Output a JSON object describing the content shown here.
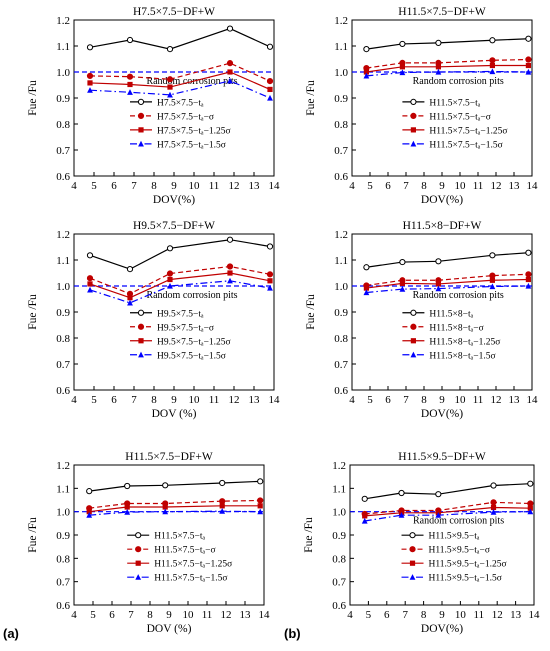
{
  "panel_labels": [
    "(a)",
    "(b)"
  ],
  "series_style": {
    "colors": [
      "#000000",
      "#c00000",
      "#c00000",
      "#0000ff"
    ],
    "line_styles": [
      "solid",
      "dashed",
      "solid",
      "dashdot"
    ],
    "markers": [
      "circle-open",
      "circle-filled",
      "square-filled",
      "triangle-filled"
    ]
  },
  "annotation_color": "#0000ff",
  "chart_data": [
    {
      "type": "line",
      "title": "H7.5×7.5−DF+W",
      "xlabel": "DOV(%)",
      "ylabel": "Fue /Fu",
      "xlim": [
        4,
        14
      ],
      "ylim": [
        0.6,
        1.2
      ],
      "xticks": [
        "4",
        "5",
        "6",
        "7",
        "8",
        "9",
        "10",
        "11",
        "12",
        "13",
        "14"
      ],
      "yticks": [
        "0.6",
        "0.7",
        "0.8",
        "0.9",
        "1.0",
        "1.1",
        "1.2"
      ],
      "x": [
        4.8,
        6.8,
        8.8,
        11.8,
        13.8
      ],
      "reference_line": 1.0,
      "annotation": "Random corrosion pits",
      "series": [
        {
          "name": "H7.5×7.5−tₐ",
          "values": [
            1.095,
            1.123,
            1.088,
            1.167,
            1.097
          ]
        },
        {
          "name": "H7.5×7.5−tₐ−σ",
          "values": [
            0.985,
            0.982,
            0.972,
            1.034,
            0.965
          ]
        },
        {
          "name": "H7.5×7.5−tₐ−1.25σ",
          "values": [
            0.958,
            0.952,
            0.942,
            1.0,
            0.933
          ]
        },
        {
          "name": "H7.5×7.5−tₐ−1.5σ",
          "values": [
            0.93,
            0.922,
            0.912,
            0.966,
            0.9
          ]
        }
      ]
    },
    {
      "type": "line",
      "title": "H11.5×7.5−DF+W",
      "xlabel": "DOV(%)",
      "ylabel": "Fue /Fu",
      "xlim": [
        4,
        14
      ],
      "ylim": [
        0.6,
        1.2
      ],
      "xticks": [
        "4",
        "5",
        "6",
        "7",
        "8",
        "9",
        "10",
        "11",
        "12",
        "13",
        "14"
      ],
      "yticks": [
        "0.6",
        "0.7",
        "0.8",
        "0.9",
        "1.0",
        "1.1",
        "1.2"
      ],
      "x": [
        4.8,
        6.8,
        8.8,
        11.8,
        13.8
      ],
      "reference_line": 1.0,
      "annotation": "Random corrosion pits",
      "series": [
        {
          "name": "H11.5×7.5−tₐ",
          "values": [
            1.088,
            1.108,
            1.112,
            1.122,
            1.128
          ]
        },
        {
          "name": "H11.5×7.5−tₐ−σ",
          "values": [
            1.015,
            1.035,
            1.035,
            1.045,
            1.048
          ]
        },
        {
          "name": "H11.5×7.5−tₐ−1.25σ",
          "values": [
            1.0,
            1.02,
            1.02,
            1.025,
            1.025
          ]
        },
        {
          "name": "H11.5×7.5−tₐ−1.5σ",
          "values": [
            0.985,
            0.998,
            1.0,
            1.002,
            1.0
          ]
        }
      ]
    },
    {
      "type": "line",
      "title": "H9.5×7.5−DF+W",
      "xlabel": "DOV (%)",
      "ylabel": "Fue /Fu",
      "xlim": [
        4,
        14
      ],
      "ylim": [
        0.6,
        1.2
      ],
      "xticks": [
        "4",
        "5",
        "6",
        "7",
        "8",
        "9",
        "10",
        "11",
        "12",
        "13",
        "14"
      ],
      "yticks": [
        "0.6",
        "0.7",
        "0.8",
        "0.9",
        "1.0",
        "1.1",
        "1.2"
      ],
      "x": [
        4.8,
        6.8,
        8.8,
        11.8,
        13.8
      ],
      "reference_line": 1.0,
      "annotation": "Random corrosion pits",
      "series": [
        {
          "name": "H9.5×7.5−tₐ",
          "values": [
            1.118,
            1.065,
            1.145,
            1.178,
            1.152
          ]
        },
        {
          "name": "H9.5×7.5−tₐ−σ",
          "values": [
            1.03,
            0.97,
            1.048,
            1.075,
            1.045
          ]
        },
        {
          "name": "H9.5×7.5−tₐ−1.25σ",
          "values": [
            1.008,
            0.955,
            1.025,
            1.05,
            1.02
          ]
        },
        {
          "name": "H9.5×7.5−tₐ−1.5σ",
          "values": [
            0.985,
            0.935,
            1.0,
            1.02,
            0.992
          ]
        }
      ]
    },
    {
      "type": "line",
      "title": "H11.5×8−DF+W",
      "xlabel": "DOV(%)",
      "ylabel": "Fue /Fu",
      "xlim": [
        4,
        14
      ],
      "ylim": [
        0.6,
        1.2
      ],
      "xticks": [
        "4",
        "5",
        "6",
        "7",
        "8",
        "9",
        "10",
        "11",
        "12",
        "13",
        "14"
      ],
      "yticks": [
        "0.6",
        "0.7",
        "0.8",
        "0.9",
        "1.0",
        "1.1",
        "1.2"
      ],
      "x": [
        4.8,
        6.8,
        8.8,
        11.8,
        13.8
      ],
      "reference_line": 1.0,
      "annotation": "Random corrosion pits",
      "series": [
        {
          "name": "H11.5×8−tₐ",
          "values": [
            1.072,
            1.092,
            1.095,
            1.118,
            1.128
          ]
        },
        {
          "name": "H11.5×8−tₐ−σ",
          "values": [
            1.002,
            1.022,
            1.022,
            1.04,
            1.045
          ]
        },
        {
          "name": "H11.5×8−tₐ−1.25σ",
          "values": [
            0.992,
            1.01,
            1.008,
            1.022,
            1.025
          ]
        },
        {
          "name": "H11.5×8−tₐ−1.5σ",
          "values": [
            0.975,
            0.988,
            0.99,
            0.998,
            1.0
          ]
        }
      ]
    },
    {
      "type": "line",
      "title": "H11.5×7.5−DF+W",
      "xlabel": "DOV (%)",
      "ylabel": "Fue /Fu",
      "xlim": [
        4,
        14
      ],
      "ylim": [
        0.6,
        1.2
      ],
      "xticks": [
        "4",
        "5",
        "6",
        "7",
        "8",
        "9",
        "10",
        "11",
        "12",
        "13",
        "14"
      ],
      "yticks": [
        "0.6",
        "0.7",
        "0.8",
        "0.9",
        "1.0",
        "1.1",
        "1.2"
      ],
      "x": [
        4.8,
        6.8,
        8.8,
        11.8,
        13.8
      ],
      "reference_line": 1.0,
      "annotation": "",
      "series": [
        {
          "name": "H11.5×7.5−tₐ",
          "values": [
            1.088,
            1.11,
            1.113,
            1.123,
            1.13
          ]
        },
        {
          "name": "H11.5×7.5−tₐ−σ",
          "values": [
            1.015,
            1.035,
            1.035,
            1.045,
            1.048
          ]
        },
        {
          "name": "H11.5×7.5−tₐ−1.25σ",
          "values": [
            1.0,
            1.02,
            1.02,
            1.025,
            1.025
          ]
        },
        {
          "name": "H11.5×7.5−tₐ−1.5σ",
          "values": [
            0.985,
            0.998,
            1.0,
            1.002,
            1.0
          ]
        }
      ]
    },
    {
      "type": "line",
      "title": "H11.5×9.5−DF+W",
      "xlabel": "DOV(%)",
      "ylabel": "Fue /Fu",
      "xlim": [
        4,
        14
      ],
      "ylim": [
        0.6,
        1.2
      ],
      "xticks": [
        "4",
        "5",
        "6",
        "7",
        "8",
        "9",
        "10",
        "11",
        "12",
        "13",
        "14"
      ],
      "yticks": [
        "0.6",
        "0.7",
        "0.8",
        "0.9",
        "1.0",
        "1.1",
        "1.2"
      ],
      "x": [
        4.8,
        6.8,
        8.8,
        11.8,
        13.8
      ],
      "reference_line": 1.0,
      "annotation": "Random corrosion pits",
      "series": [
        {
          "name": "H11.5×9.5−tₐ",
          "values": [
            1.055,
            1.08,
            1.075,
            1.112,
            1.12
          ]
        },
        {
          "name": "H11.5×9.5−tₐ−σ",
          "values": [
            0.99,
            1.005,
            1.005,
            1.04,
            1.035
          ]
        },
        {
          "name": "H11.5×9.5−tₐ−1.25σ",
          "values": [
            0.982,
            0.995,
            0.995,
            1.018,
            1.015
          ]
        },
        {
          "name": "H11.5×9.5−tₐ−1.5σ",
          "values": [
            0.96,
            0.985,
            0.985,
            0.998,
            1.0
          ]
        }
      ]
    }
  ]
}
